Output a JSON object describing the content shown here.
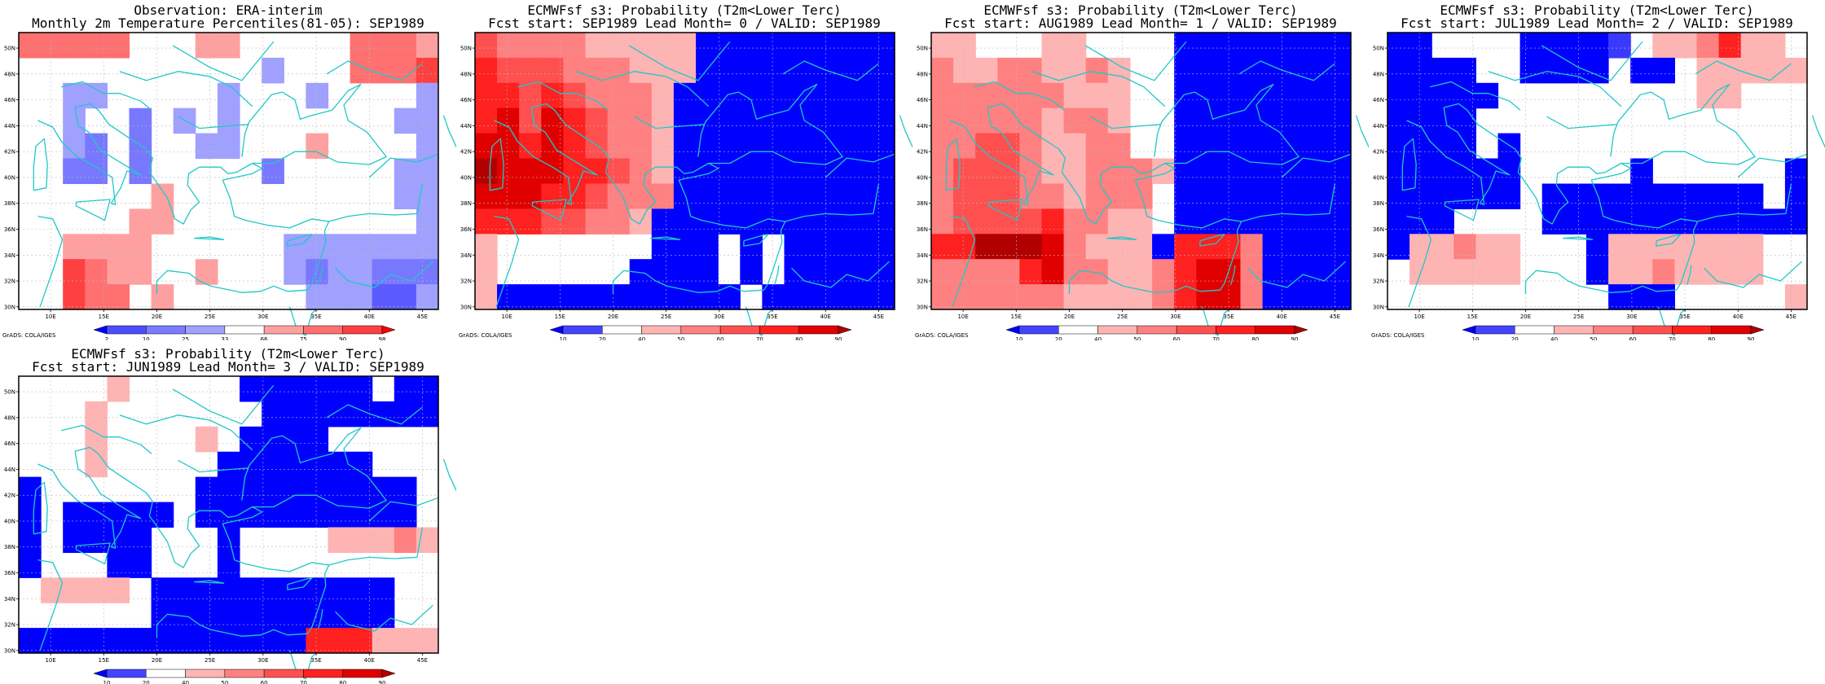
{
  "credit": "GrADS: COLA/IGES",
  "map": {
    "lon_ticks": [
      "10E",
      "15E",
      "20E",
      "25E",
      "30E",
      "35E",
      "40E",
      "45E"
    ],
    "lat_ticks": [
      "30N",
      "32N",
      "34N",
      "36N",
      "38N",
      "40N",
      "42N",
      "44N",
      "46N",
      "48N",
      "50N"
    ],
    "coastline_color": "#20c8c8",
    "grid_color": "#bbbbbb"
  },
  "scales": {
    "percentile": {
      "labels": [
        "2",
        "10",
        "25",
        "33",
        "66",
        "75",
        "90",
        "98"
      ],
      "colors": [
        "#0000ff",
        "#4d4dff",
        "#7b7bff",
        "#a0a0ff",
        "#ffffff",
        "#ffa0a0",
        "#ff7070",
        "#ff4040",
        "#ff0000"
      ]
    },
    "probability": {
      "labels": [
        "10",
        "20",
        "40",
        "50",
        "60",
        "70",
        "80",
        "90"
      ],
      "colors": [
        "#0000ff",
        "#4444ff",
        "#ffffff",
        "#ffb4b4",
        "#ff8080",
        "#ff5050",
        "#ff2020",
        "#e00000",
        "#b00000"
      ]
    }
  },
  "panels": [
    {
      "title1": "Observation: ERA-interim",
      "title2": "Monthly 2m Temperature Percentiles(81-05): SEP1989",
      "scale": "percentile",
      "palette": {
        "A": "#2020ff",
        "B": "#5a5aff",
        "C": "#7878ff",
        "D": "#a0a0ff",
        "E": "#ffa0a0",
        "F": "#ff7070",
        "G": "#ff4040",
        "H": "#ff2020",
        "I": "#d00000",
        "J": "#900000"
      },
      "grid": [
        "FFFFF...EE.....FFFE",
        "...........D...FFFG",
        "..DD.....D...D....D",
        "..D..C.D.D.......DD",
        "..DC.C..DD...E....D",
        "..CC.C.....C.....DD",
        "......E..........DD",
        ".....EE...........D",
        "..EEEE......DDDDDDD",
        "..GFEE..E...DCDDCCC",
        "..GFF.E......DDDBBD"
      ]
    },
    {
      "title1": "ECMWFsf s3: Probability (T2m<Lower Terc)",
      "title2": "Fcst start: SEP1989  Lead Month= 0 / VALID: SEP1989",
      "scale": "probability",
      "palette": {
        "A": "#0000ff",
        "B": "#3a3aff",
        "E": "#ffb4b4",
        "F": "#ff8080",
        "G": "#ff5050",
        "H": "#ff2020",
        "I": "#e00000",
        "J": "#b00000"
      },
      "grid": [
        "GFFFFEEEEEAAAAAAAAA",
        "HGGGFFFEEEAAAAAAAAA",
        "HHGHGFFFEAAAAAAAAAA",
        "HIGIHGFFEAAAAAAAAAA",
        "IIHIHGFFEAAAAAAAAAA",
        "JIIIHHGFEAAAAAAAAAA",
        "IIIHHGFFFAAAAAAAAAA",
        "HHHGGFFEAAAAAAAAAAA",
        "E.......AAA.A.AAAAA",
        "E......AAAA.A.AAAAA",
        "EAAAAAAAAAAA.AAAAAA"
      ]
    },
    {
      "title1": "ECMWFsf s3: Probability (T2m<Lower Terc)",
      "title2": "Fcst start: AUG1989  Lead Month= 1 / VALID: SEP1989",
      "scale": "probability",
      "palette": {
        "A": "#0000ff",
        "B": "#3a3aff",
        "E": "#ffb4b4",
        "F": "#ff8080",
        "G": "#ff5050",
        "H": "#ff2020",
        "I": "#e00000",
        "J": "#b00000"
      },
      "grid": [
        "EE...EE....AAAAAAAA",
        "FEEFFEEFE..AAAAAAAA",
        "FFFFFFEEE..AAAAAAAA",
        "FFFFFEFFE..AAAAAAAA",
        "FFGGFEEFF..AAAAAAAA",
        "FGGGFEEFFFEAAAAAAAA",
        "FGGGFFEFFF.AAAAAAAA",
        "FGGGGHFFEE.AAAAAAAA",
        "HHJJJIFEEEAHHHFAAAA",
        "FFFFHIFFEEFHIIFAAAA",
        "FFFFFFEEEEFHIIFAAAA"
      ]
    },
    {
      "title1": "ECMWFsf s3: Probability (T2m<Lower Terc)",
      "title2": "Fcst start: JUL1989  Lead Month= 2 / VALID: SEP1989",
      "scale": "probability",
      "palette": {
        "A": "#0000ff",
        "B": "#3a3aff",
        "E": "#ffb4b4",
        "F": "#ff8080",
        "G": "#ff5050",
        "H": "#ff2020",
        "I": "#e00000",
        "J": "#b00000"
      },
      "grid": [
        "AA....AAAAB.EEFHEE.",
        "AAAA..AAAA.AA.EEEEE",
        "AAAAA.........EE...",
        "AAAA..............",
        "AAAA.A.............",
        "AAAAAA.....A......A",
        "AAAAAA.AAAAAAAAAA.A",
        "AAA....AAAAAAAAAAAA",
        "AEEFEE...AEEEEEEE..",
        ".EEEEE...AEEFEEEE..",
        "..........AAA.....E"
      ]
    },
    {
      "title1": "ECMWFsf s3: Probability (T2m<Lower Terc)",
      "title2": "Fcst start: JUN1989  Lead Month= 3 / VALID: SEP1989",
      "scale": "probability",
      "palette": {
        "A": "#0000ff",
        "B": "#3a3aff",
        "E": "#ffb4b4",
        "F": "#ff8080",
        "G": "#ff5050",
        "H": "#ff2020",
        "I": "#e00000",
        "J": "#b00000"
      },
      "grid": [
        "....E.....AAAAAA.AA",
        "...E.......AAAAAAAA",
        "...E....E.AAAA.....",
        "...E.....AAAAAAA...",
        "A.......AAAAAAAAAA.",
        "A.AAAAA.AAAAAAAAAA.",
        "A.AAAA...A....EEEFE",
        "A...AA...A.........",
        ".EEEE.AAAAAAAAAAA..",
        "......AAAAAAAAAAA..",
        "AAAAAAAAAAAAAHHHEEE"
      ]
    }
  ]
}
